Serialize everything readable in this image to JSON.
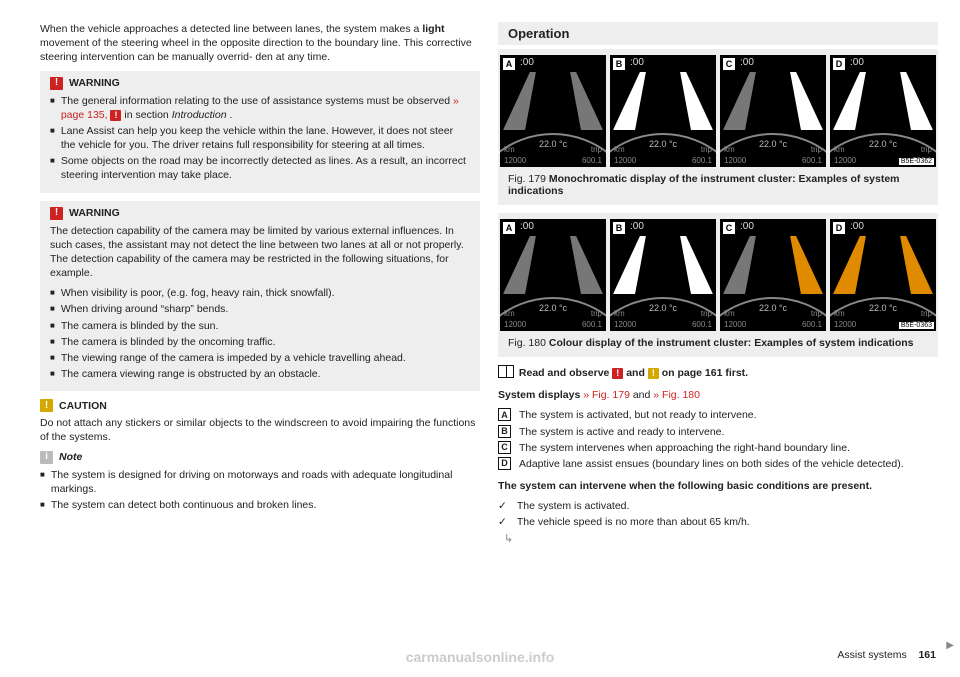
{
  "left": {
    "intro": [
      "When the vehicle approaches a detected line between lanes, the system",
      "makes a ",
      "light",
      " movement of the steering wheel in the opposite direction to the",
      "boundary line. This corrective steering intervention can be manually overrid-",
      "den at any time."
    ],
    "warn1": {
      "title": "WARNING",
      "items": [
        [
          "The general information relating to the use of assistance systems must be observed ",
          "» page 135, ",
          " in section ",
          "Introduction",
          "."
        ],
        [
          "Lane Assist can help you keep the vehicle within the lane. However, it does not steer the vehicle for you. The driver retains full responsibility for steering at all times."
        ],
        [
          "Some objects on the road may be incorrectly detected as lines. As a result, an incorrect steering intervention may take place."
        ]
      ]
    },
    "warn2": {
      "title": "WARNING",
      "lead": "The detection capability of the camera may be limited by various external influences. In such cases, the assistant may not detect the line between two lanes at all or not properly. The detection capability of the camera may be restricted in the following situations, for example.",
      "items": [
        "When visibility is poor, (e.g. fog, heavy rain, thick snowfall).",
        "When driving around “sharp” bends.",
        "The camera is blinded by the sun.",
        "The camera is blinded by the oncoming traffic.",
        "The viewing range of the camera is impeded by a vehicle travelling ahead.",
        "The camera viewing range is obstructed by an obstacle."
      ]
    },
    "caution": {
      "title": "CAUTION",
      "text": "Do not attach any stickers or similar objects to the windscreen to avoid impairing the functions of the systems."
    },
    "note": {
      "title": "Note",
      "items": [
        "The system is designed for driving on motorways and roads with adequate longitudinal markings.",
        "The system can detect both continuous and broken lines."
      ]
    }
  },
  "right": {
    "section_title": "Operation",
    "fig179": {
      "caption_prefix": "Fig. 179  ",
      "caption_bold": "Monochromatic display of the instrument cluster: Examples of system indications",
      "chip": "B5E-0362"
    },
    "fig180": {
      "caption_prefix": "Fig. 180  ",
      "caption_bold": "Colour display of the instrument cluster: Examples of system indications",
      "chip": "B5E-0363"
    },
    "panel": {
      "time": ":00",
      "temp": "22.0 °c",
      "km": "km",
      "trip": "trip",
      "odo": "12000",
      "trp": "600.1",
      "letters": [
        "A",
        "B",
        "C",
        "D"
      ]
    },
    "read_line": {
      "a": "Read and observe ",
      "b": " and ",
      "c": " on page 161 first."
    },
    "sysdisp": {
      "lead_a": "System displays",
      "lead_b": "» Fig. 179",
      "lead_c": " and ",
      "lead_d": "» Fig. 180",
      "rows": [
        "The system is activated, but not ready to intervene.",
        "The system is active and ready to intervene.",
        "The system intervenes when approaching the right-hand boundary line.",
        "Adaptive lane assist ensues (boundary lines on both sides of the vehicle detected)."
      ]
    },
    "conditions": {
      "head": "The system can intervene when the following basic conditions are present.",
      "items": [
        "The system is activated.",
        "The vehicle speed is no more than about 65 km/h."
      ]
    }
  },
  "footer": {
    "section": "Assist systems",
    "page": "161"
  },
  "watermark": "carmanualsonline.info",
  "colors": {
    "mono_dim": "#777777",
    "mono_bright": "#ffffff",
    "color_dim": "#777777",
    "color_bright": "#ffffff",
    "color_orange": "#e08a00"
  }
}
